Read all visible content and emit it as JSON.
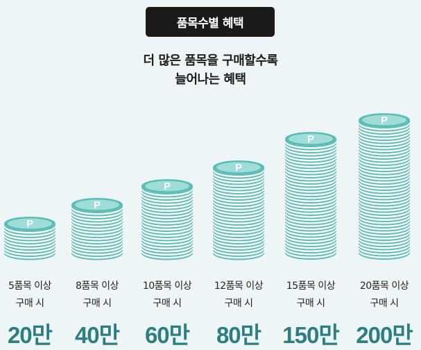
{
  "header": {
    "badge_label": "품목수별 혜택",
    "subtitle_line1": "더 많은 품목을 구매할수록",
    "subtitle_line2": "늘어나는 혜택"
  },
  "coin_symbol": "P",
  "colors": {
    "badge_bg": "#1a1a1a",
    "coin_teal": "#5bbcb6",
    "coin_light": "#9fddd8",
    "amount_text": "#2b7f80",
    "background": "#eef5f7"
  },
  "tiers": [
    {
      "condition": "5품목 이상",
      "purchase": "구매 시",
      "amount": "20만",
      "coin_count": 10
    },
    {
      "condition": "8품목 이상",
      "purchase": "구매 시",
      "amount": "40만",
      "coin_count": 16
    },
    {
      "condition": "10품목 이상",
      "purchase": "구매 시",
      "amount": "60만",
      "coin_count": 22
    },
    {
      "condition": "12품목 이상",
      "purchase": "구매 시",
      "amount": "80만",
      "coin_count": 28
    },
    {
      "condition": "15품목 이상",
      "purchase": "구매 시",
      "amount": "150만",
      "coin_count": 37
    },
    {
      "condition": "20품목 이상",
      "purchase": "구매 시",
      "amount": "200만",
      "coin_count": 43
    }
  ]
}
